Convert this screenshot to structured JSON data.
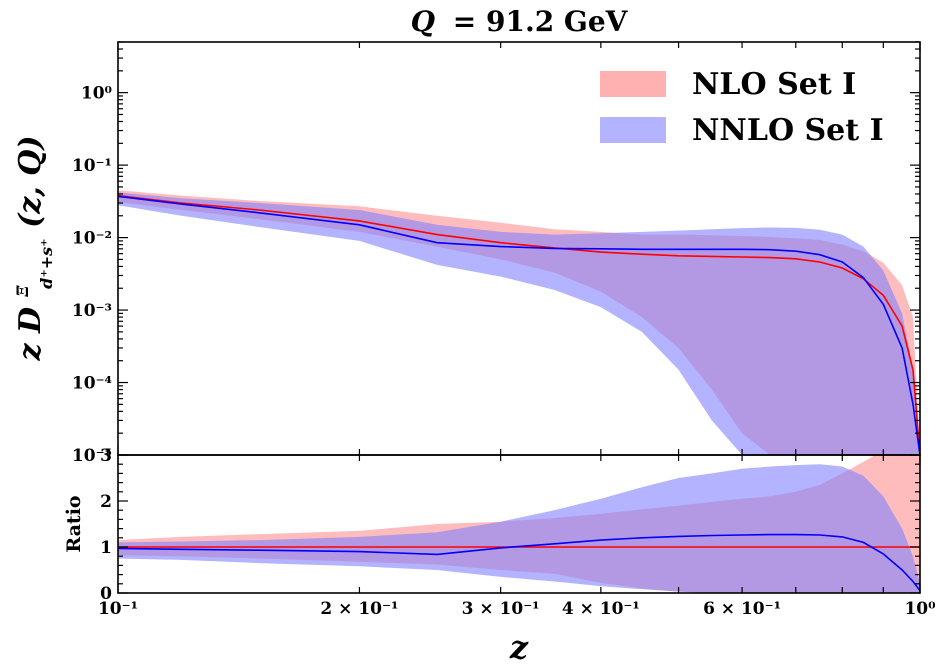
{
  "chart_data": [
    {
      "type": "area",
      "panel": "main",
      "title_symbol": "Q",
      "title_value": "= 91.2 GeV",
      "xlabel": "z",
      "ylabel_prefix": "z D",
      "ylabel_super": "Ξ",
      "ylabel_sub": "d⁺+s⁺",
      "ylabel_suffix": "(z, Q)",
      "xscale": "log",
      "yscale": "log",
      "xlim": [
        0.1,
        1.0
      ],
      "ylim": [
        1e-05,
        5
      ],
      "y_ticks": [
        1e-05,
        0.0001,
        0.001,
        0.01,
        0.1,
        1
      ],
      "y_tick_labels": [
        "10⁻⁵",
        "10⁻⁴",
        "10⁻³",
        "10⁻²",
        "10⁻¹",
        "10⁰"
      ],
      "legend_position": "top-right",
      "series": [
        {
          "name": "NLO Set I",
          "color": "#ff8080",
          "band_color": "#ffb0b0",
          "x": [
            0.1,
            0.12,
            0.15,
            0.2,
            0.25,
            0.3,
            0.35,
            0.4,
            0.45,
            0.5,
            0.55,
            0.6,
            0.65,
            0.7,
            0.75,
            0.8,
            0.85,
            0.9,
            0.95,
            0.98,
            1.0
          ],
          "central": [
            0.038,
            0.03,
            0.024,
            0.017,
            0.011,
            0.0085,
            0.0072,
            0.0063,
            0.0059,
            0.0056,
            0.0055,
            0.0054,
            0.0053,
            0.0051,
            0.0046,
            0.0038,
            0.0027,
            0.0016,
            0.0006,
            0.00015,
            1e-05
          ],
          "upper": [
            0.045,
            0.038,
            0.032,
            0.027,
            0.02,
            0.016,
            0.013,
            0.012,
            0.011,
            0.011,
            0.0108,
            0.0105,
            0.0102,
            0.0098,
            0.0093,
            0.008,
            0.0065,
            0.0045,
            0.0022,
            0.0008,
            1e-05
          ],
          "lower": [
            0.031,
            0.024,
            0.018,
            0.012,
            0.0075,
            0.005,
            0.0033,
            0.0018,
            0.0008,
            0.0003,
            8e-05,
            2e-05,
            1e-05,
            1e-05,
            1e-05,
            1e-05,
            1e-05,
            1e-05,
            1e-05,
            1e-05,
            1e-05
          ]
        },
        {
          "name": "NNLO Set I",
          "color": "#0000ff",
          "band_color": "#8080ff",
          "x": [
            0.1,
            0.12,
            0.15,
            0.2,
            0.25,
            0.3,
            0.35,
            0.4,
            0.45,
            0.5,
            0.55,
            0.6,
            0.65,
            0.7,
            0.75,
            0.8,
            0.85,
            0.9,
            0.95,
            0.98,
            1.0
          ],
          "central": [
            0.037,
            0.029,
            0.022,
            0.015,
            0.0085,
            0.0075,
            0.0071,
            0.007,
            0.0069,
            0.0069,
            0.0069,
            0.0069,
            0.0068,
            0.0065,
            0.0058,
            0.0046,
            0.0028,
            0.0012,
            0.0003,
            5e-05,
            1e-05
          ],
          "upper": [
            0.042,
            0.035,
            0.03,
            0.024,
            0.015,
            0.012,
            0.011,
            0.0115,
            0.012,
            0.0125,
            0.013,
            0.0135,
            0.0138,
            0.0136,
            0.0128,
            0.011,
            0.0075,
            0.0035,
            0.0009,
            0.00015,
            1e-05
          ],
          "lower": [
            0.028,
            0.02,
            0.014,
            0.009,
            0.0042,
            0.0029,
            0.0019,
            0.0011,
            0.0005,
            0.00015,
            3e-05,
            1e-05,
            1e-05,
            1e-05,
            1e-05,
            1e-05,
            1e-05,
            1e-05,
            1e-05,
            1e-05,
            1e-05
          ]
        }
      ]
    },
    {
      "type": "area",
      "panel": "ratio",
      "ylabel": "Ratio",
      "xscale": "log",
      "xlim": [
        0.1,
        1.0
      ],
      "ylim": [
        0,
        3
      ],
      "y_ticks": [
        0,
        1,
        2,
        3
      ],
      "y_tick_labels": [
        "0",
        "1",
        "2",
        "3"
      ],
      "x_ticks": [
        0.1,
        0.2,
        0.3,
        0.4,
        0.6,
        1.0
      ],
      "x_tick_labels": [
        "10⁻¹",
        "2 × 10⁻¹",
        "3 × 10⁻¹",
        "4 × 10⁻¹",
        "6 × 10⁻¹",
        "10⁰"
      ],
      "series": [
        {
          "name": "NLO Set I",
          "color": "#ff0000",
          "band_color": "#ffb0b0",
          "x": [
            0.1,
            0.12,
            0.15,
            0.2,
            0.25,
            0.3,
            0.35,
            0.4,
            0.45,
            0.5,
            0.55,
            0.6,
            0.65,
            0.7,
            0.75,
            0.8,
            0.85,
            0.9,
            0.95,
            0.98,
            1.0
          ],
          "central": [
            1,
            1,
            1,
            1,
            1,
            1,
            1,
            1,
            1,
            1,
            1,
            1,
            1,
            1,
            1,
            1,
            1,
            1,
            1,
            1,
            1
          ],
          "upper": [
            1.15,
            1.22,
            1.28,
            1.35,
            1.5,
            1.55,
            1.63,
            1.72,
            1.82,
            1.9,
            1.98,
            2.05,
            2.1,
            2.2,
            2.35,
            2.6,
            2.85,
            3.1,
            3.2,
            3.2,
            3.2
          ],
          "lower": [
            0.82,
            0.8,
            0.75,
            0.68,
            0.62,
            0.5,
            0.42,
            0.22,
            0.1,
            0.03,
            0,
            0,
            0,
            0,
            0,
            0,
            0,
            0,
            0,
            0,
            0
          ]
        },
        {
          "name": "NNLO Set I",
          "color": "#0000ff",
          "band_color": "#8080ff",
          "x": [
            0.1,
            0.12,
            0.15,
            0.2,
            0.25,
            0.3,
            0.35,
            0.4,
            0.45,
            0.5,
            0.55,
            0.6,
            0.65,
            0.7,
            0.75,
            0.8,
            0.85,
            0.9,
            0.95,
            0.98,
            1.0
          ],
          "central": [
            0.97,
            0.95,
            0.93,
            0.9,
            0.84,
            0.98,
            1.07,
            1.15,
            1.2,
            1.23,
            1.25,
            1.26,
            1.27,
            1.27,
            1.26,
            1.22,
            1.1,
            0.85,
            0.5,
            0.25,
            0.05
          ],
          "upper": [
            1.1,
            1.12,
            1.15,
            1.22,
            1.32,
            1.55,
            1.8,
            2.05,
            2.3,
            2.5,
            2.6,
            2.7,
            2.75,
            2.78,
            2.8,
            2.75,
            2.55,
            2.1,
            1.4,
            0.8,
            0.2
          ],
          "lower": [
            0.75,
            0.72,
            0.65,
            0.58,
            0.5,
            0.35,
            0.25,
            0.15,
            0.08,
            0.03,
            0,
            0,
            0,
            0,
            0,
            0,
            0,
            0,
            0,
            0,
            0
          ]
        }
      ]
    }
  ]
}
